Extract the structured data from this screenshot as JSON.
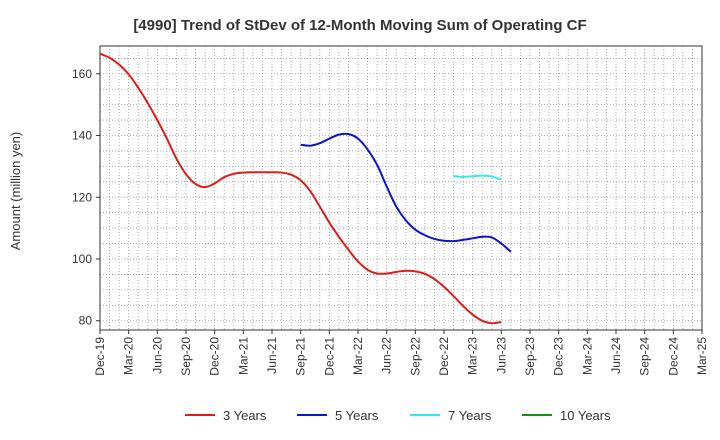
{
  "chart_data": {
    "type": "line",
    "title": "[4990]  Trend of StDev of 12-Month Moving Sum of Operating CF",
    "xlabel": "",
    "ylabel": "Amount (million yen)",
    "x_ticks": [
      "Dec-19",
      "Mar-20",
      "Jun-20",
      "Sep-20",
      "Dec-20",
      "Mar-21",
      "Jun-21",
      "Sep-21",
      "Dec-21",
      "Mar-22",
      "Jun-22",
      "Sep-22",
      "Dec-22",
      "Mar-23",
      "Jun-23",
      "Sep-23",
      "Dec-23",
      "Mar-24",
      "Jun-24",
      "Sep-24",
      "Dec-24",
      "Mar-25"
    ],
    "y_ticks": [
      80,
      100,
      120,
      140,
      160
    ],
    "ylim": [
      77,
      169
    ],
    "grid": true,
    "legend_position": "bottom",
    "series": [
      {
        "name": "3 Years",
        "color": "#dd1c1c",
        "values": [
          [
            0,
            166.5
          ],
          [
            1,
            165.2
          ],
          [
            2,
            163.0
          ],
          [
            3,
            159.8
          ],
          [
            4,
            155.5
          ],
          [
            5,
            150.5
          ],
          [
            6,
            145.0
          ],
          [
            7,
            139.0
          ],
          [
            8,
            132.5
          ],
          [
            9,
            127.5
          ],
          [
            10,
            124.3
          ],
          [
            11,
            123.3
          ],
          [
            12,
            124.5
          ],
          [
            13,
            126.5
          ],
          [
            14,
            127.6
          ],
          [
            15,
            128.0
          ],
          [
            16,
            128.1
          ],
          [
            17,
            128.1
          ],
          [
            18,
            128.1
          ],
          [
            19,
            128.0
          ],
          [
            20,
            127.3
          ],
          [
            21,
            125.5
          ],
          [
            22,
            122.0
          ],
          [
            23,
            117.0
          ],
          [
            24,
            111.8
          ],
          [
            25,
            107.2
          ],
          [
            26,
            103.0
          ],
          [
            27,
            99.2
          ],
          [
            28,
            96.5
          ],
          [
            29,
            95.3
          ],
          [
            30,
            95.3
          ],
          [
            31,
            95.8
          ],
          [
            32,
            96.2
          ],
          [
            33,
            96.0
          ],
          [
            34,
            95.2
          ],
          [
            35,
            93.5
          ],
          [
            36,
            91.0
          ],
          [
            37,
            88.0
          ],
          [
            38,
            84.8
          ],
          [
            39,
            82.0
          ],
          [
            40,
            80.0
          ],
          [
            41,
            79.2
          ],
          [
            42,
            79.6
          ]
        ]
      },
      {
        "name": "5 Years",
        "color": "#0a14c8",
        "values": [
          [
            21,
            137.0
          ],
          [
            22,
            136.7
          ],
          [
            23,
            137.5
          ],
          [
            24,
            139.0
          ],
          [
            25,
            140.3
          ],
          [
            26,
            140.5
          ],
          [
            27,
            139.0
          ],
          [
            28,
            135.5
          ],
          [
            29,
            130.5
          ],
          [
            30,
            123.5
          ],
          [
            31,
            117.0
          ],
          [
            32,
            112.5
          ],
          [
            33,
            109.5
          ],
          [
            34,
            107.7
          ],
          [
            35,
            106.5
          ],
          [
            36,
            105.9
          ],
          [
            37,
            105.8
          ],
          [
            38,
            106.2
          ],
          [
            39,
            106.7
          ],
          [
            40,
            107.2
          ],
          [
            41,
            107.0
          ],
          [
            42,
            105.0
          ],
          [
            43,
            102.3
          ]
        ]
      },
      {
        "name": "7 Years",
        "color": "#33e8ee",
        "values": [
          [
            37,
            126.8
          ],
          [
            38,
            126.6
          ],
          [
            39,
            126.8
          ],
          [
            40,
            127.0
          ],
          [
            41,
            126.7
          ],
          [
            42,
            125.7
          ]
        ]
      },
      {
        "name": "10 Years",
        "color": "#1c8a1c",
        "values": []
      }
    ]
  }
}
